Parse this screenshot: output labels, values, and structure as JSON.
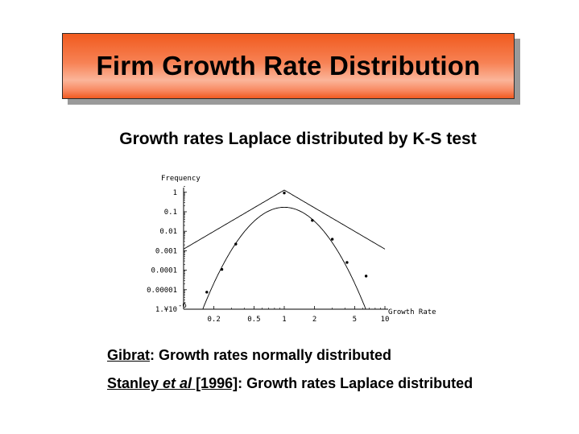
{
  "slide": {
    "title": "Firm Growth Rate Distribution",
    "subtitle": "Growth rates Laplace distributed by K-S test"
  },
  "notes": {
    "line1": {
      "name": "Gibrat",
      "text": ":  Growth rates normally distributed"
    },
    "line2": {
      "author": "Stanley ",
      "etal": "et al",
      "year": " [1996]",
      "text": ": Growth rates Laplace distributed"
    }
  },
  "colors": {
    "title_fill": "#f47040",
    "ink": "#000000"
  },
  "chart_data": {
    "type": "scatter",
    "ylabel": "Frequency",
    "xlabel": "Growth Rate",
    "x_scale": "log",
    "y_scale": "log",
    "xlim": [
      0.1,
      10
    ],
    "ylim": [
      1e-06,
      2
    ],
    "x_ticks": [
      {
        "value": 0.2,
        "label": "0.2"
      },
      {
        "value": 0.5,
        "label": "0.5"
      },
      {
        "value": 1,
        "label": "1"
      },
      {
        "value": 2,
        "label": "2"
      },
      {
        "value": 5,
        "label": "5"
      },
      {
        "value": 10,
        "label": "10"
      }
    ],
    "y_ticks": [
      {
        "value": 1e-06,
        "label": "1.¥10"
      },
      {
        "value": 1e-05,
        "label": "0.00001"
      },
      {
        "value": 0.0001,
        "label": "0.0001"
      },
      {
        "value": 0.001,
        "label": "0.001"
      },
      {
        "value": 0.01,
        "label": "0.01"
      },
      {
        "value": 0.1,
        "label": "0.1"
      },
      {
        "value": 1,
        "label": "1"
      }
    ],
    "y_tick_exponent": "-6",
    "points": [
      {
        "x": 0.17,
        "y": 7.5e-06
      },
      {
        "x": 0.24,
        "y": 0.00011
      },
      {
        "x": 0.33,
        "y": 0.0022
      },
      {
        "x": 1.0,
        "y": 0.92
      },
      {
        "x": 1.9,
        "y": 0.036
      },
      {
        "x": 3.0,
        "y": 0.0039
      },
      {
        "x": 4.2,
        "y": 0.00025
      },
      {
        "x": 6.5,
        "y": 5e-05
      }
    ],
    "curves": [
      {
        "type": "laplace",
        "peak": 1.3,
        "slope": 3.03
      },
      {
        "type": "normal",
        "peak": 0.17,
        "sigma": 0.38
      }
    ],
    "grid": false
  }
}
